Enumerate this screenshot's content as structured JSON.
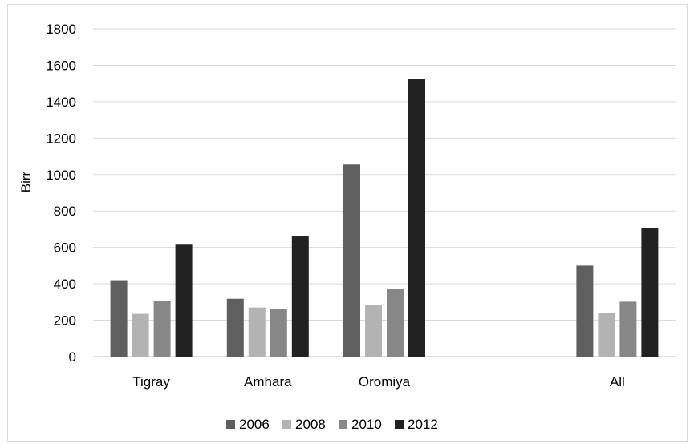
{
  "chart_data": {
    "type": "bar",
    "title": "",
    "xlabel": "",
    "ylabel": "Birr",
    "ylim": [
      0,
      1800
    ],
    "yticks": [
      0,
      200,
      400,
      600,
      800,
      1000,
      1200,
      1400,
      1600,
      1800
    ],
    "grid": true,
    "legend_position": "bottom",
    "categories": [
      "Tigray",
      "Amhara",
      "Oromiya",
      "",
      "All"
    ],
    "series": [
      {
        "name": "2006",
        "color": "#5f5f5f",
        "values": [
          420,
          318,
          1055,
          null,
          500
        ]
      },
      {
        "name": "2008",
        "color": "#b3b3b3",
        "values": [
          235,
          270,
          283,
          null,
          240
        ]
      },
      {
        "name": "2010",
        "color": "#878787",
        "values": [
          308,
          262,
          373,
          null,
          302
        ]
      },
      {
        "name": "2012",
        "color": "#222222",
        "values": [
          615,
          660,
          1527,
          null,
          708
        ]
      }
    ]
  }
}
